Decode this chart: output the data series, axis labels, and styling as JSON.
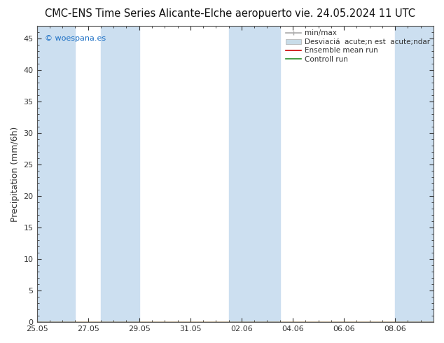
{
  "title": "CMC-ENS Time Series Alicante-Elche aeropuerto",
  "date_label": "vie. 24.05.2024 11 UTC",
  "ylabel": "Precipitation (mm/6h)",
  "watermark": "© woespana.es",
  "ylim": [
    0,
    47
  ],
  "yticks": [
    0,
    5,
    10,
    15,
    20,
    25,
    30,
    35,
    40,
    45
  ],
  "xtick_labels": [
    "25.05",
    "27.05",
    "29.05",
    "31.05",
    "02.06",
    "04.06",
    "06.06",
    "08.06"
  ],
  "xtick_positions": [
    0,
    2,
    4,
    6,
    8,
    10,
    12,
    14
  ],
  "total_days": 15.5,
  "shaded_bands": [
    [
      0.0,
      1.5
    ],
    [
      2.5,
      4.0
    ],
    [
      7.5,
      9.5
    ],
    [
      14.0,
      15.5
    ]
  ],
  "shade_color": "#ccdff0",
  "background_color": "#ffffff",
  "plot_bg_color": "#ffffff",
  "grid_color": "#cccccc",
  "tick_color": "#333333",
  "title_fontsize": 10.5,
  "label_fontsize": 9,
  "tick_fontsize": 8,
  "legend_fontsize": 7.5,
  "watermark_color": "#1a6ec4",
  "legend_line_color_minmax": "#aaaaaa",
  "legend_fill_color_std": "#c8dce8",
  "legend_line_color_ens": "#cc0000",
  "legend_line_color_ctrl": "#228B22"
}
